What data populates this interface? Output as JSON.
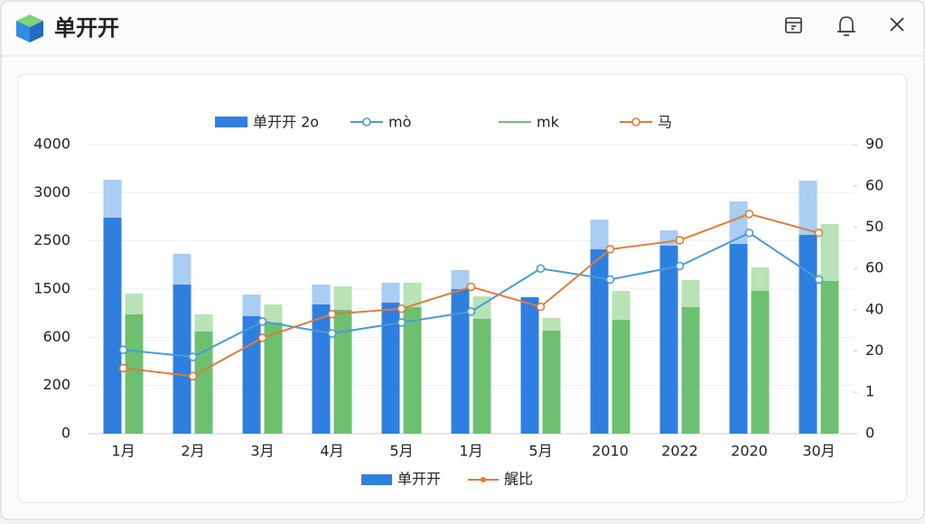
{
  "window_title": "单开开",
  "chart_data": {
    "type": "bar",
    "categories": [
      "1月",
      "2月",
      "3月",
      "4月",
      "5月",
      "1月",
      "5月",
      "2010",
      "2022",
      "2020",
      "30月"
    ],
    "series": [
      {
        "name": "单开开 2o",
        "color": "#2f7fe0",
        "kind": "bar",
        "group": 0,
        "values": [
          2988,
          2063,
          1625,
          1788,
          1813,
          2000,
          1888,
          2550,
          2600,
          2625,
          2750
        ]
      },
      {
        "color": "#a9cdf3",
        "kind": "bar",
        "group": 0,
        "values": [
          525,
          425,
          300,
          275,
          275,
          263,
          0,
          413,
          213,
          588,
          750
        ]
      },
      {
        "name": "mk",
        "color": "#6cc070",
        "kind": "bar",
        "group": 1,
        "values": [
          1650,
          1413,
          1538,
          1713,
          1750,
          1588,
          1425,
          1575,
          1750,
          1975,
          2113
        ]
      },
      {
        "color": "#b9e2b6",
        "kind": "bar",
        "group": 1,
        "values": [
          288,
          238,
          250,
          325,
          338,
          313,
          175,
          400,
          375,
          325,
          788
        ]
      },
      {
        "name": "mò",
        "color": "#4a9ad8",
        "kind": "line",
        "axis": "y2",
        "values": [
          26.1,
          23.9,
          34.9,
          31.2,
          34.6,
          38.0,
          51.4,
          48.0,
          52.2,
          62.5,
          48.0
        ]
      },
      {
        "name": "马",
        "color": "#e07b39",
        "kind": "line",
        "axis": "y2",
        "values": [
          20.4,
          17.9,
          29.8,
          37.2,
          38.9,
          45.7,
          39.5,
          57.4,
          60.2,
          68.4,
          62.5
        ]
      }
    ],
    "ylim": [
      0,
      4000
    ],
    "yticks": [
      0,
      {
        "value": 667,
        "label": "200"
      },
      {
        "value": 1333,
        "label": "600"
      },
      {
        "value": 2000,
        "label": "1500"
      },
      {
        "value": 2667,
        "label": "2500"
      },
      {
        "value": 3333,
        "label": "3000"
      },
      4000
    ],
    "y2lim": [
      0,
      90
    ],
    "y2ticks": [
      0,
      {
        "value": 12.9,
        "label": "1"
      },
      {
        "value": 25.7,
        "label": "20"
      },
      {
        "value": 38.6,
        "label": "40"
      },
      {
        "value": 51.4,
        "label": "60"
      },
      {
        "value": 64.3,
        "label": "50"
      },
      {
        "value": 77.1,
        "label": "60"
      },
      90
    ],
    "legend2": [
      "单开开",
      "艉比"
    ]
  }
}
